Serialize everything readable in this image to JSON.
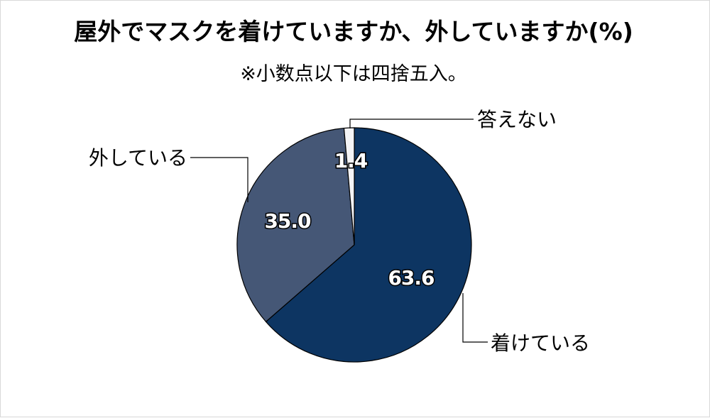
{
  "chart_data": {
    "type": "pie",
    "title": "屋外でマスクを着けていますか、外していますか(%)",
    "subtitle": "※小数点以下は四捨五入。",
    "start_angle_deg": 0,
    "direction": "clockwise",
    "slices": [
      {
        "label": "着けている",
        "value": 63.6,
        "value_label": "63.6",
        "color": "#0d3562"
      },
      {
        "label": "外している",
        "value": 35.0,
        "value_label": "35.0",
        "color": "#455776"
      },
      {
        "label": "答えない",
        "value": 1.4,
        "value_label": "1.4",
        "color": "#f4f4f6"
      }
    ]
  }
}
